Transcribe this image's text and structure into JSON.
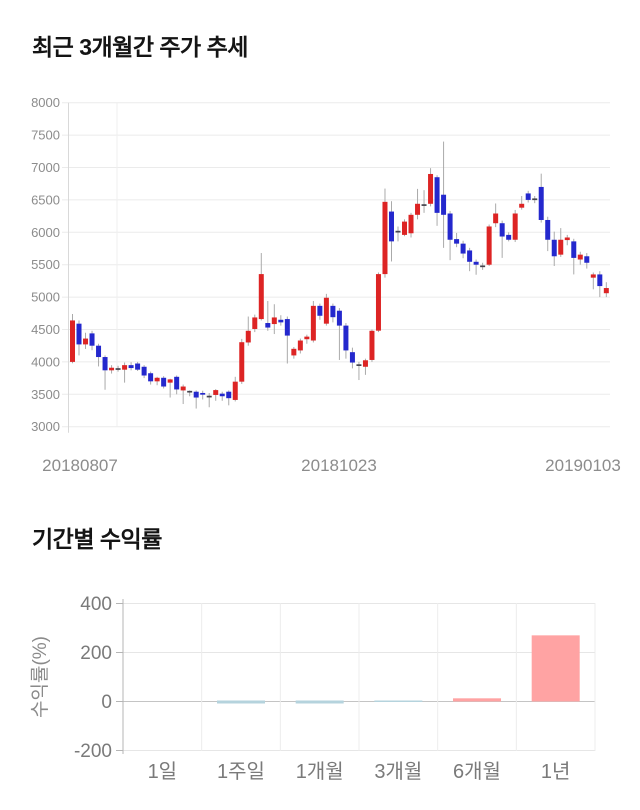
{
  "chart_data": [
    {
      "type": "candlestick",
      "title": "최근 3개월간 주가 추세",
      "ylabel": "",
      "xlabel": "",
      "ylim": [
        3000,
        8000
      ],
      "y_ticks": [
        8000,
        7500,
        7000,
        6500,
        6000,
        5500,
        5000,
        4500,
        4000,
        3500,
        3000
      ],
      "x_tick_labels": [
        "20180807",
        "20181023",
        "20190103"
      ],
      "grid": "horizontal",
      "colors": {
        "up": "#dd2424",
        "down": "#2428cd",
        "doji": "#44444e",
        "wick": "#aaaaaa",
        "grid": "#ebebeb",
        "axis": "#d9d9d9",
        "tick_label": "#8c8c8c"
      },
      "candles_ohlc": [
        [
          4000,
          4740,
          3980,
          4640
        ],
        [
          4590,
          4640,
          4100,
          4270
        ],
        [
          4270,
          4450,
          4200,
          4360
        ],
        [
          4440,
          4480,
          4180,
          4250
        ],
        [
          4250,
          4280,
          3930,
          4075
        ],
        [
          4075,
          4100,
          3570,
          3870
        ],
        [
          3870,
          3950,
          3820,
          3910
        ],
        [
          3890,
          3940,
          3850,
          3890
        ],
        [
          3880,
          3990,
          3680,
          3950
        ],
        [
          3950,
          3995,
          3870,
          3905
        ],
        [
          3975,
          4000,
          3860,
          3880
        ],
        [
          3925,
          3950,
          3750,
          3790
        ],
        [
          3825,
          3850,
          3650,
          3700
        ],
        [
          3700,
          3770,
          3640,
          3755
        ],
        [
          3755,
          3780,
          3590,
          3620
        ],
        [
          3680,
          3740,
          3450,
          3730
        ],
        [
          3770,
          3790,
          3500,
          3575
        ],
        [
          3560,
          3650,
          3350,
          3620
        ],
        [
          3540,
          3560,
          3470,
          3540
        ],
        [
          3540,
          3560,
          3280,
          3450
        ],
        [
          3520,
          3555,
          3420,
          3495
        ],
        [
          3465,
          3520,
          3300,
          3465
        ],
        [
          3490,
          3580,
          3400,
          3565
        ],
        [
          3510,
          3540,
          3400,
          3470
        ],
        [
          3540,
          3560,
          3330,
          3440
        ],
        [
          3413,
          3770,
          3390,
          3695
        ],
        [
          3695,
          4355,
          3660,
          4304
        ],
        [
          4300,
          4700,
          4250,
          4480
        ],
        [
          4508,
          4730,
          4460,
          4686
        ],
        [
          4661,
          5680,
          4640,
          5355
        ],
        [
          4600,
          4940,
          4480,
          4530
        ],
        [
          4584,
          4890,
          4430,
          4686
        ],
        [
          4650,
          4720,
          4560,
          4610
        ],
        [
          4661,
          4700,
          3975,
          4406
        ],
        [
          4100,
          4230,
          4050,
          4202
        ],
        [
          4177,
          4360,
          4130,
          4330
        ],
        [
          4350,
          4420,
          4280,
          4390
        ],
        [
          4330,
          4940,
          4300,
          4865
        ],
        [
          4865,
          4900,
          4650,
          4712
        ],
        [
          4590,
          5050,
          4560,
          4990
        ],
        [
          4865,
          4900,
          4610,
          4690
        ],
        [
          4790,
          4830,
          4030,
          4560
        ],
        [
          4560,
          4600,
          4050,
          4177
        ],
        [
          4150,
          4220,
          3900,
          3990
        ],
        [
          3950,
          4000,
          3720,
          3950
        ],
        [
          3925,
          4050,
          3800,
          4025
        ],
        [
          4030,
          4500,
          4000,
          4480
        ],
        [
          4482,
          5380,
          4460,
          5355
        ],
        [
          5355,
          6675,
          5300,
          6470
        ],
        [
          6320,
          6480,
          5550,
          5860
        ],
        [
          6010,
          6090,
          5860,
          6010
        ],
        [
          5960,
          6200,
          5940,
          6165
        ],
        [
          5985,
          6300,
          5920,
          6270
        ],
        [
          6270,
          6670,
          6200,
          6440
        ],
        [
          6420,
          6650,
          6300,
          6420
        ],
        [
          6440,
          6990,
          6400,
          6900
        ],
        [
          6850,
          6880,
          6100,
          6300
        ],
        [
          6580,
          7400,
          5760,
          6270
        ],
        [
          6290,
          6330,
          5570,
          5885
        ],
        [
          5895,
          5990,
          5770,
          5825
        ],
        [
          5825,
          5870,
          5600,
          5672
        ],
        [
          5720,
          5760,
          5400,
          5545
        ],
        [
          5545,
          5580,
          5345,
          5500
        ],
        [
          5475,
          5530,
          5420,
          5475
        ],
        [
          5500,
          6120,
          5480,
          6090
        ],
        [
          6140,
          6445,
          6080,
          6290
        ],
        [
          6140,
          6180,
          5605,
          5935
        ],
        [
          5960,
          6000,
          5860,
          5885
        ],
        [
          5885,
          6345,
          5850,
          6290
        ],
        [
          6380,
          6560,
          6350,
          6440
        ],
        [
          6600,
          6640,
          6460,
          6500
        ],
        [
          6510,
          6560,
          6450,
          6510
        ],
        [
          6700,
          6905,
          6150,
          6190
        ],
        [
          6190,
          6240,
          5710,
          5885
        ],
        [
          5885,
          6010,
          5480,
          5630
        ],
        [
          5655,
          6065,
          5620,
          5885
        ],
        [
          5880,
          5960,
          5800,
          5920
        ],
        [
          5860,
          5900,
          5350,
          5605
        ],
        [
          5580,
          5700,
          5500,
          5655
        ],
        [
          5630,
          5680,
          5440,
          5530
        ],
        [
          5300,
          5380,
          5120,
          5350
        ],
        [
          5350,
          5400,
          5000,
          5170
        ],
        [
          5060,
          5230,
          5000,
          5140
        ]
      ]
    },
    {
      "type": "bar",
      "title": "기간별 수익률",
      "ylabel": "수익률(%)",
      "xlabel": "",
      "ylim": [
        -300,
        450
      ],
      "y_ticks": [
        400,
        200,
        0,
        -200
      ],
      "categories": [
        "1일",
        "1주일",
        "1개월",
        "3개월",
        "6개월",
        "1년"
      ],
      "values": [
        0,
        -3,
        -3,
        -1,
        13,
        270
      ],
      "grid": "both",
      "legend": "none",
      "colors": {
        "positive": "#ffa3a3",
        "negative": "#b5d3dd",
        "grid": "#e6e6e6",
        "zero_line": "#c4c4c4",
        "axis": "#b5b5b5",
        "tick_label": "#7a7a7a",
        "axis_label": "#8a8a8a"
      }
    }
  ]
}
